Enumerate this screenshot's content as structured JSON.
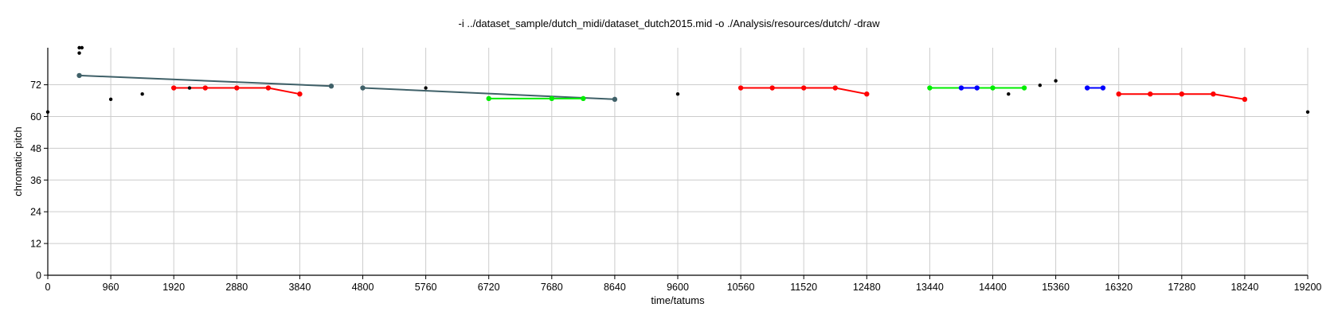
{
  "chart_data": {
    "type": "scatter",
    "title": "-i ../dataset_sample/dutch_midi/dataset_dutch2015.mid -o ./Analysis/resources/dutch/ -draw",
    "xlabel": "time/tatums",
    "ylabel": "chromatic pitch",
    "xlim": [
      0,
      19200
    ],
    "ylim": [
      0,
      86
    ],
    "grid": true,
    "x_ticks": [
      0,
      960,
      1920,
      2880,
      3840,
      4800,
      5760,
      6720,
      7680,
      8640,
      9600,
      10560,
      11520,
      12480,
      13440,
      14400,
      15360,
      16320,
      17280,
      18240,
      19200
    ],
    "y_ticks": [
      0,
      12,
      24,
      36,
      48,
      60,
      72
    ],
    "colors": {
      "gray_pattern": "#3f6068",
      "red_pattern": "#ff0000",
      "green_pattern": "#00ee00",
      "blue_pattern": "#0000ff",
      "note": "#000000",
      "grid": "#cccccc"
    },
    "notes": [
      {
        "x": 0,
        "y": 61.7
      },
      {
        "x": 480,
        "y": 86
      },
      {
        "x": 520,
        "y": 86
      },
      {
        "x": 480,
        "y": 84
      },
      {
        "x": 960,
        "y": 66.5
      },
      {
        "x": 1440,
        "y": 68.5
      },
      {
        "x": 2160,
        "y": 70.8
      },
      {
        "x": 5760,
        "y": 70.8
      },
      {
        "x": 9600,
        "y": 68.5
      },
      {
        "x": 14640,
        "y": 68.5
      },
      {
        "x": 15120,
        "y": 71.8
      },
      {
        "x": 15360,
        "y": 73.5
      },
      {
        "x": 19200,
        "y": 61.7
      }
    ],
    "series": [
      {
        "color_key": "gray_pattern",
        "points": [
          [
            480,
            75.5
          ],
          [
            4320,
            71.5
          ]
        ]
      },
      {
        "color_key": "gray_pattern",
        "points": [
          [
            4800,
            70.8
          ],
          [
            8640,
            66.5
          ]
        ]
      },
      {
        "color_key": "red_pattern",
        "points": [
          [
            1920,
            70.8
          ],
          [
            2400,
            70.8
          ],
          [
            2880,
            70.8
          ],
          [
            3360,
            70.8
          ],
          [
            3840,
            68.5
          ]
        ]
      },
      {
        "color_key": "green_pattern",
        "points": [
          [
            6720,
            66.8
          ],
          [
            7680,
            66.8
          ],
          [
            8160,
            66.8
          ]
        ]
      },
      {
        "color_key": "red_pattern",
        "points": [
          [
            10560,
            70.8
          ],
          [
            11040,
            70.8
          ],
          [
            11520,
            70.8
          ],
          [
            12000,
            70.8
          ],
          [
            12480,
            68.5
          ]
        ]
      },
      {
        "color_key": "green_pattern",
        "points": [
          [
            13440,
            70.8
          ],
          [
            14400,
            70.8
          ],
          [
            14880,
            70.8
          ]
        ]
      },
      {
        "color_key": "blue_pattern",
        "points": [
          [
            13920,
            70.8
          ],
          [
            14160,
            70.8
          ]
        ]
      },
      {
        "color_key": "blue_pattern",
        "points": [
          [
            15840,
            70.8
          ],
          [
            16080,
            70.8
          ]
        ]
      },
      {
        "color_key": "red_pattern",
        "points": [
          [
            16320,
            68.5
          ],
          [
            16800,
            68.5
          ],
          [
            17280,
            68.5
          ],
          [
            17760,
            68.5
          ],
          [
            18240,
            66.5
          ]
        ]
      }
    ]
  }
}
